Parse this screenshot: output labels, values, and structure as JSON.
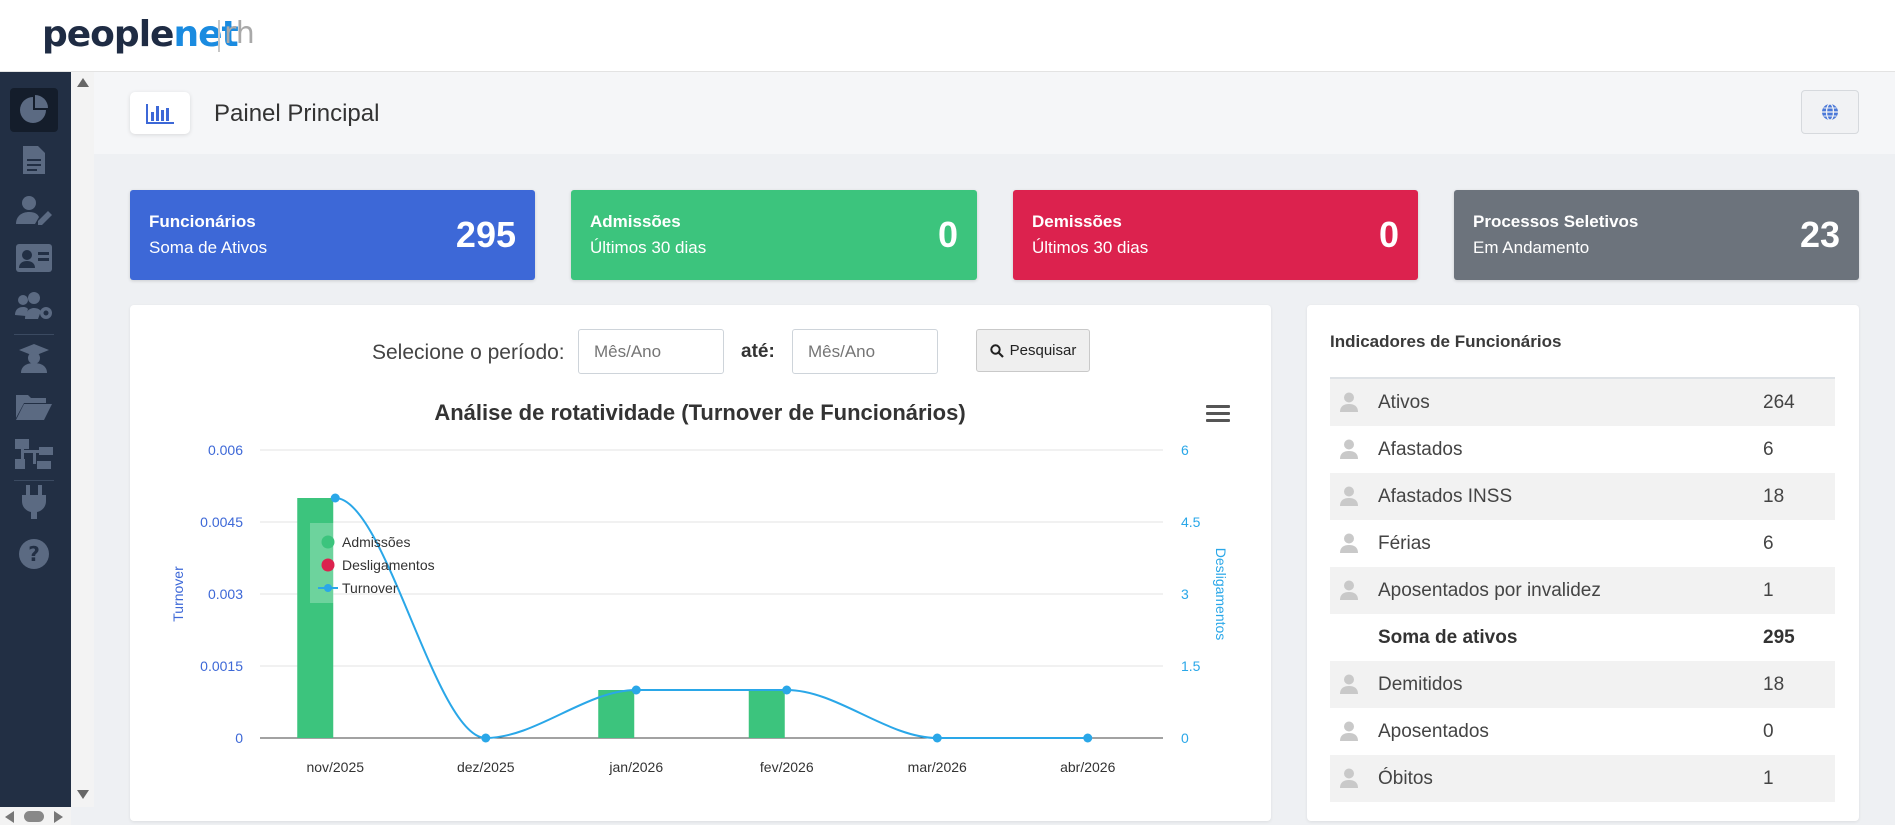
{
  "brand": {
    "logo_main": "people",
    "logo_accent": "net",
    "logo_suffix": "rh"
  },
  "header": {
    "title": "Painel Principal"
  },
  "sidebar": {
    "items": [
      {
        "icon": "pie-chart-icon"
      },
      {
        "icon": "document-icon"
      },
      {
        "icon": "user-edit-icon"
      },
      {
        "icon": "id-card-icon"
      },
      {
        "icon": "users-cog-icon"
      },
      {
        "icon": "graduate-icon"
      },
      {
        "icon": "folder-open-icon"
      },
      {
        "icon": "sitemap-icon"
      },
      {
        "icon": "plug-icon"
      },
      {
        "icon": "help-icon"
      }
    ]
  },
  "cards": [
    {
      "title": "Funcionários",
      "subtitle": "Soma de Ativos",
      "value": "295",
      "color": "#3d68d7"
    },
    {
      "title": "Admissões",
      "subtitle": "Últimos 30 dias",
      "value": "0",
      "color": "#3cc47d"
    },
    {
      "title": "Demissões",
      "subtitle": "Últimos 30 dias",
      "value": "0",
      "color": "#dc224e"
    },
    {
      "title": "Processos Seletivos",
      "subtitle": "Em Andamento",
      "value": "23",
      "color": "#6c737c"
    }
  ],
  "filter": {
    "label": "Selecione o período:",
    "from_placeholder": "Mês/Ano",
    "to_label": "até:",
    "to_placeholder": "Mês/Ano",
    "search_label": "Pesquisar"
  },
  "chart_data": {
    "type": "bar",
    "title": "Análise de rotatividade (Turnover de Funcionários)",
    "categories": [
      "nov/2025",
      "dez/2025",
      "jan/2026",
      "fev/2026",
      "mar/2026",
      "abr/2026"
    ],
    "ylabel": "Turnover",
    "y2label": "Desligamentos",
    "ylim": [
      0,
      0.006
    ],
    "yticks": [
      "0",
      "0.0015",
      "0.003",
      "0.0045",
      "0.006"
    ],
    "y2lim": [
      0,
      6
    ],
    "y2ticks": [
      "0",
      "1.5",
      "3",
      "4.5",
      "6"
    ],
    "legend_position": "top-left",
    "series": [
      {
        "name": "Admissões",
        "type": "bar",
        "axis": "left",
        "color": "#3cc47d",
        "values": [
          0.005,
          0,
          0.001,
          0.001,
          0,
          0
        ]
      },
      {
        "name": "Desligamentos",
        "type": "bar",
        "axis": "right",
        "color": "#dc224e",
        "values": [
          0,
          0,
          0,
          0,
          0,
          0
        ]
      },
      {
        "name": "Turnover",
        "type": "spline",
        "axis": "right",
        "color": "#2aa7e8",
        "values": [
          5,
          0,
          1,
          1,
          0,
          0
        ]
      }
    ]
  },
  "indicators": {
    "title": "Indicadores de Funcionários",
    "rows": [
      {
        "label": "Ativos",
        "value": "264"
      },
      {
        "label": "Afastados",
        "value": "6"
      },
      {
        "label": "Afastados INSS",
        "value": "18"
      },
      {
        "label": "Férias",
        "value": "6"
      },
      {
        "label": "Aposentados por invalidez",
        "value": "1"
      },
      {
        "label": "Soma de ativos",
        "value": "295"
      },
      {
        "label": "Demitidos",
        "value": "18"
      },
      {
        "label": "Aposentados",
        "value": "0"
      },
      {
        "label": "Óbitos",
        "value": "1"
      }
    ]
  }
}
